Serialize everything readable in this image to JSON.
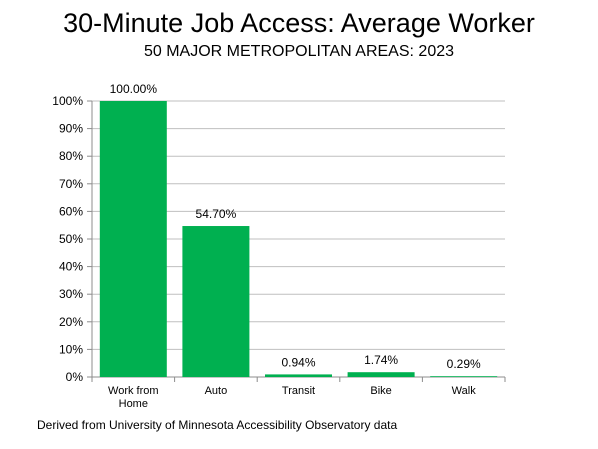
{
  "chart_data": {
    "type": "bar",
    "title": "30-Minute Job Access: Average Worker",
    "subtitle": "50 MAJOR METROPOLITAN AREAS: 2023",
    "categories": [
      "Work from Home",
      "Auto",
      "Transit",
      "Bike",
      "Walk"
    ],
    "values": [
      100.0,
      54.7,
      0.94,
      1.74,
      0.29
    ],
    "data_labels": [
      "100.00%",
      "54.70%",
      "0.94%",
      "1.74%",
      "0.29%"
    ],
    "ylim": [
      0,
      100
    ],
    "yticks": [
      "0%",
      "10%",
      "20%",
      "30%",
      "40%",
      "50%",
      "60%",
      "70%",
      "80%",
      "90%",
      "100%"
    ],
    "grid": true,
    "bar_color": "#00b050",
    "source": "Derived from University of Minnesota Accessibility Observatory data"
  }
}
